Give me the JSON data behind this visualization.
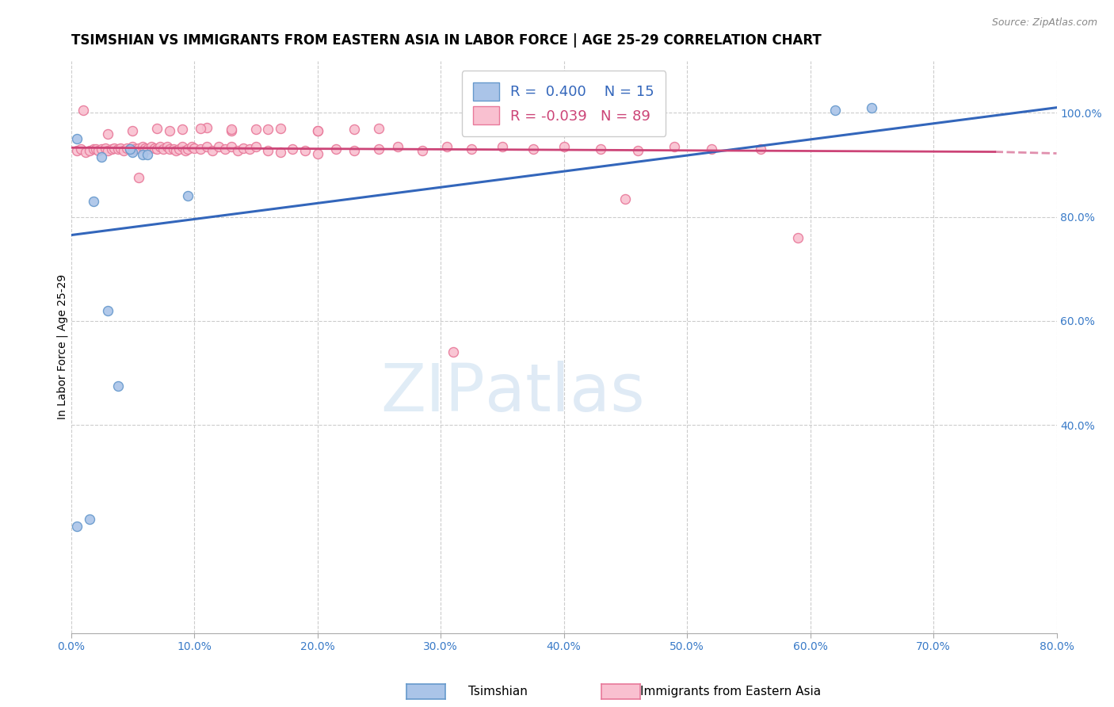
{
  "title": "TSIMSHIAN VS IMMIGRANTS FROM EASTERN ASIA IN LABOR FORCE | AGE 25-29 CORRELATION CHART",
  "source_text": "Source: ZipAtlas.com",
  "ylabel": "In Labor Force | Age 25-29",
  "xlim": [
    0.0,
    0.8
  ],
  "ylim": [
    0.0,
    1.1
  ],
  "blue_R": 0.4,
  "blue_N": 15,
  "pink_R": -0.039,
  "pink_N": 89,
  "blue_color": "#aac4e8",
  "pink_color": "#f9c0d0",
  "blue_edge_color": "#6699cc",
  "pink_edge_color": "#e8799a",
  "blue_line_color": "#3366bb",
  "pink_line_color": "#cc4477",
  "watermark_zip": "ZIP",
  "watermark_atlas": "atlas",
  "legend_tsimshian": "Tsimshian",
  "legend_immigrants": "Immigrants from Eastern Asia",
  "blue_scatter_x": [
    0.005,
    0.025,
    0.05,
    0.058,
    0.062,
    0.03,
    0.018,
    0.038,
    0.048,
    0.095,
    0.62,
    0.65,
    0.33,
    0.005,
    0.015
  ],
  "blue_scatter_y": [
    0.95,
    0.915,
    0.925,
    0.92,
    0.92,
    0.62,
    0.83,
    0.475,
    0.93,
    0.84,
    1.005,
    1.01,
    1.0,
    0.205,
    0.22
  ],
  "pink_scatter_x": [
    0.005,
    0.008,
    0.012,
    0.015,
    0.018,
    0.02,
    0.022,
    0.025,
    0.028,
    0.03,
    0.033,
    0.035,
    0.038,
    0.04,
    0.043,
    0.045,
    0.048,
    0.05,
    0.052,
    0.055,
    0.058,
    0.06,
    0.062,
    0.065,
    0.068,
    0.07,
    0.072,
    0.075,
    0.078,
    0.08,
    0.083,
    0.085,
    0.088,
    0.09,
    0.093,
    0.095,
    0.098,
    0.1,
    0.105,
    0.11,
    0.115,
    0.12,
    0.125,
    0.13,
    0.135,
    0.14,
    0.145,
    0.15,
    0.16,
    0.17,
    0.18,
    0.19,
    0.2,
    0.215,
    0.23,
    0.25,
    0.265,
    0.285,
    0.305,
    0.325,
    0.35,
    0.375,
    0.4,
    0.43,
    0.46,
    0.49,
    0.52,
    0.56,
    0.05,
    0.07,
    0.09,
    0.11,
    0.13,
    0.15,
    0.17,
    0.2,
    0.23,
    0.01,
    0.03,
    0.055,
    0.08,
    0.105,
    0.13,
    0.16,
    0.2,
    0.25,
    0.31,
    0.45,
    0.59
  ],
  "pink_scatter_y": [
    0.928,
    0.93,
    0.925,
    0.928,
    0.93,
    0.93,
    0.928,
    0.93,
    0.932,
    0.928,
    0.93,
    0.932,
    0.93,
    0.932,
    0.928,
    0.932,
    0.93,
    0.935,
    0.93,
    0.932,
    0.935,
    0.932,
    0.93,
    0.935,
    0.932,
    0.93,
    0.935,
    0.93,
    0.935,
    0.93,
    0.93,
    0.928,
    0.93,
    0.935,
    0.928,
    0.93,
    0.935,
    0.932,
    0.93,
    0.935,
    0.928,
    0.935,
    0.93,
    0.935,
    0.928,
    0.932,
    0.93,
    0.935,
    0.928,
    0.925,
    0.93,
    0.928,
    0.922,
    0.93,
    0.928,
    0.93,
    0.935,
    0.928,
    0.935,
    0.93,
    0.935,
    0.93,
    0.935,
    0.93,
    0.928,
    0.935,
    0.93,
    0.93,
    0.965,
    0.97,
    0.968,
    0.972,
    0.965,
    0.968,
    0.97,
    0.965,
    0.968,
    1.005,
    0.96,
    0.875,
    0.965,
    0.97,
    0.968,
    0.968,
    0.965,
    0.97,
    0.54,
    0.835,
    0.76
  ],
  "blue_line_x0": 0.0,
  "blue_line_x1": 0.8,
  "blue_line_y0": 0.765,
  "blue_line_y1": 1.01,
  "pink_line_x0": 0.0,
  "pink_line_x1": 0.75,
  "pink_line_y0": 0.933,
  "pink_line_y1": 0.925,
  "axis_color": "#3a7bc8",
  "grid_color": "#cccccc",
  "title_fontsize": 12,
  "label_fontsize": 10,
  "tick_fontsize": 10,
  "right_yticks": [
    0.4,
    0.6,
    0.8,
    1.0
  ],
  "right_ytick_labels": [
    "40.0%",
    "60.0%",
    "80.0%",
    "100.0%"
  ]
}
